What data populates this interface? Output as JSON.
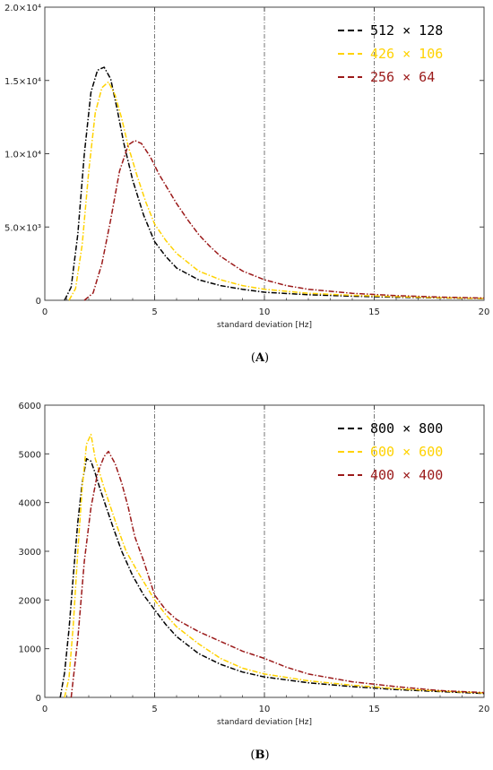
{
  "chart_data": [
    {
      "type": "line",
      "panel_label": "(A)",
      "bold_part": "A",
      "xlabel": "standard deviation [Hz]",
      "xlim": [
        0,
        20
      ],
      "ylim": [
        0,
        20000
      ],
      "xticks": [
        0,
        5,
        10,
        15,
        20
      ],
      "x_tick_labels": [
        "0",
        "5",
        "10",
        "15",
        "20"
      ],
      "yticks": [
        0,
        5000,
        10000,
        15000,
        20000
      ],
      "y_tick_labels": [
        "0",
        "5.0×10³",
        "1.0×10⁴",
        "1.5×10⁴",
        "2.0×10⁴"
      ],
      "vlines": [
        5,
        10,
        15
      ],
      "legend_position": "top-right",
      "series": [
        {
          "name": "512 × 128",
          "color": "#000000",
          "x": [
            0.9,
            1.2,
            1.5,
            1.8,
            2.1,
            2.4,
            2.7,
            3.0,
            3.3,
            3.6,
            4.0,
            4.5,
            5.0,
            5.5,
            6.0,
            7.0,
            8.0,
            9.0,
            10.0,
            12.0,
            14.0,
            16.0,
            18.0,
            20.0
          ],
          "y": [
            0,
            900,
            4500,
            10000,
            14200,
            15700,
            15900,
            15100,
            13000,
            10700,
            8200,
            5800,
            4000,
            3000,
            2200,
            1400,
            1000,
            750,
            550,
            380,
            280,
            210,
            160,
            120
          ]
        },
        {
          "name": "426 × 106",
          "color": "#ffd200",
          "x": [
            1.1,
            1.4,
            1.7,
            2.0,
            2.3,
            2.6,
            2.9,
            3.2,
            3.5,
            3.8,
            4.2,
            4.6,
            5.0,
            5.5,
            6.0,
            7.0,
            8.0,
            9.0,
            10.0,
            12.0,
            14.0,
            16.0,
            18.0,
            20.0
          ],
          "y": [
            0,
            800,
            3800,
            8800,
            12800,
            14500,
            14900,
            14000,
            12400,
            10500,
            8500,
            6700,
            5200,
            4100,
            3200,
            2000,
            1400,
            1000,
            750,
            480,
            340,
            250,
            180,
            130
          ]
        },
        {
          "name": "256 × 64",
          "color": "#9b1a1a",
          "x": [
            1.8,
            2.2,
            2.6,
            3.0,
            3.4,
            3.8,
            4.1,
            4.4,
            4.8,
            5.2,
            5.6,
            6.0,
            6.5,
            7.0,
            7.5,
            8.0,
            9.0,
            10.0,
            11.0,
            12.0,
            14.0,
            16.0,
            18.0,
            20.0
          ],
          "y": [
            0,
            500,
            2500,
            5500,
            8800,
            10600,
            10900,
            10700,
            9800,
            8600,
            7600,
            6600,
            5500,
            4500,
            3700,
            3000,
            2000,
            1400,
            1000,
            750,
            480,
            320,
            220,
            150
          ]
        }
      ]
    },
    {
      "type": "line",
      "panel_label": "(B)",
      "bold_part": "B",
      "xlabel": "standard deviation [Hz]",
      "xlim": [
        0,
        20
      ],
      "ylim": [
        0,
        6000
      ],
      "xticks": [
        0,
        5,
        10,
        15,
        20
      ],
      "x_tick_labels": [
        "0",
        "5",
        "10",
        "15",
        "20"
      ],
      "yticks": [
        0,
        1000,
        2000,
        3000,
        4000,
        5000,
        6000
      ],
      "y_tick_labels": [
        "0",
        "1000",
        "2000",
        "3000",
        "4000",
        "5000",
        "6000"
      ],
      "vlines": [
        5,
        10,
        15
      ],
      "legend_position": "top-right",
      "series": [
        {
          "name": "800 × 800",
          "color": "#000000",
          "x": [
            0.7,
            0.9,
            1.1,
            1.3,
            1.5,
            1.7,
            1.9,
            2.1,
            2.3,
            2.5,
            2.8,
            3.1,
            3.5,
            4.0,
            4.5,
            5.0,
            5.5,
            6.0,
            7.0,
            8.0,
            9.0,
            10.0,
            12.0,
            14.0,
            16.0,
            18.0,
            20.0
          ],
          "y": [
            0,
            500,
            1400,
            2500,
            3600,
            4400,
            4900,
            4850,
            4600,
            4300,
            3900,
            3500,
            3000,
            2500,
            2100,
            1800,
            1500,
            1250,
            900,
            680,
            520,
            420,
            300,
            220,
            160,
            120,
            80
          ]
        },
        {
          "name": "600 × 600",
          "color": "#ffd200",
          "x": [
            0.9,
            1.1,
            1.3,
            1.5,
            1.7,
            1.9,
            2.1,
            2.3,
            2.5,
            2.7,
            3.0,
            3.3,
            3.7,
            4.2,
            4.6,
            5.0,
            5.5,
            6.0,
            7.0,
            8.0,
            9.0,
            10.0,
            12.0,
            14.0,
            16.0,
            18.0,
            20.0
          ],
          "y": [
            0,
            400,
            1500,
            3000,
            4300,
            5200,
            5400,
            4900,
            4600,
            4300,
            3900,
            3500,
            3000,
            2600,
            2300,
            2000,
            1700,
            1450,
            1100,
            800,
            600,
            480,
            340,
            250,
            180,
            130,
            90
          ]
        },
        {
          "name": "400 × 400",
          "color": "#9b1a1a",
          "x": [
            1.2,
            1.5,
            1.8,
            2.1,
            2.4,
            2.7,
            2.9,
            3.2,
            3.5,
            3.8,
            4.1,
            4.5,
            5.0,
            5.5,
            6.0,
            7.0,
            8.0,
            9.0,
            10.0,
            11.0,
            12.0,
            14.0,
            16.0,
            18.0,
            20.0
          ],
          "y": [
            0,
            1200,
            2800,
            3900,
            4600,
            4950,
            5050,
            4800,
            4400,
            3900,
            3300,
            2800,
            2100,
            1800,
            1600,
            1350,
            1150,
            950,
            800,
            620,
            480,
            320,
            220,
            140,
            100
          ]
        }
      ]
    }
  ]
}
